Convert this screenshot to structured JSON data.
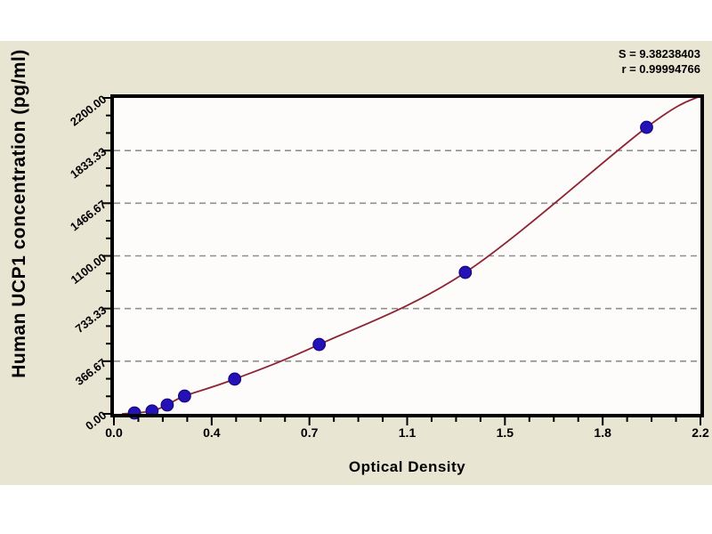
{
  "page": {
    "background_color": "#ffffff",
    "panel_color": "#e9e5d3",
    "plot_bg_color": "#fdfcfa"
  },
  "chart_data": {
    "type": "scatter",
    "title": "",
    "xlabel": "Optical Density",
    "ylabel": "Human UCP1 concentration (pg/ml)",
    "xlim": [
      0,
      2.2
    ],
    "ylim": [
      0,
      2200
    ],
    "x_tick_labels": [
      "0.0",
      "0.4",
      "0.7",
      "1.1",
      "1.5",
      "1.8",
      "2.2"
    ],
    "y_tick_labels": [
      "0.00",
      "366.67",
      "733.33",
      "1100.00",
      "1466.67",
      "1833.33",
      "2200.00"
    ],
    "grid": "horizontal-dashed-at-major-y",
    "legend_position": "none",
    "annotations": {
      "s_line": "S = 9.38238403",
      "r_line": "r = 0.99994766"
    },
    "series": [
      {
        "name": "standard-points",
        "type": "scatter",
        "marker": "filled-circle",
        "marker_color": "#2512b6",
        "marker_edge_color": "#17077e",
        "points_od_conc": [
          [
            0.077,
            6
          ],
          [
            0.143,
            20
          ],
          [
            0.2,
            62
          ],
          [
            0.265,
            124
          ],
          [
            0.453,
            242
          ],
          [
            0.77,
            483
          ],
          [
            1.318,
            985
          ],
          [
            1.998,
            1995
          ]
        ]
      },
      {
        "name": "fit-curve",
        "type": "line",
        "line_color": "#8e2433",
        "curve_od_conc": [
          [
            0.03,
            0
          ],
          [
            0.077,
            6
          ],
          [
            0.143,
            20
          ],
          [
            0.2,
            62
          ],
          [
            0.265,
            124
          ],
          [
            0.453,
            242
          ],
          [
            0.77,
            483
          ],
          [
            1.318,
            985
          ],
          [
            1.998,
            1995
          ],
          [
            2.2,
            2215
          ]
        ]
      }
    ],
    "style": {
      "grid_color": "#8f8f8f",
      "axis_color": "#000000"
    }
  }
}
